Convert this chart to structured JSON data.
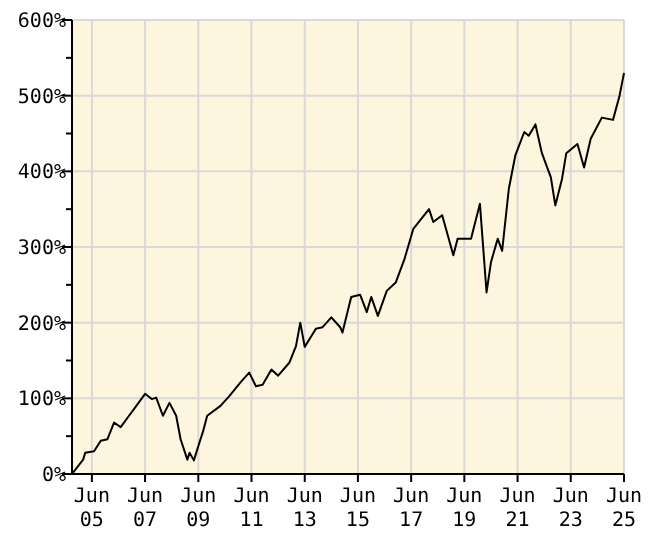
{
  "chart_data": {
    "type": "line",
    "line_style": "solid",
    "marker": "none",
    "grid": true,
    "xlim": [
      "2004-09",
      "2025-06"
    ],
    "xticks": [
      {
        "value": "2005-06",
        "label": "Jun 05"
      },
      {
        "value": "2007-06",
        "label": "Jun 07"
      },
      {
        "value": "2009-06",
        "label": "Jun 09"
      },
      {
        "value": "2011-06",
        "label": "Jun 11"
      },
      {
        "value": "2013-06",
        "label": "Jun 13"
      },
      {
        "value": "2015-06",
        "label": "Jun 15"
      },
      {
        "value": "2017-06",
        "label": "Jun 17"
      },
      {
        "value": "2019-06",
        "label": "Jun 19"
      },
      {
        "value": "2021-06",
        "label": "Jun 21"
      },
      {
        "value": "2023-06",
        "label": "Jun 23"
      },
      {
        "value": "2025-06",
        "label": "Jun 25"
      }
    ],
    "ylim": [
      0,
      600
    ],
    "yticks": [
      {
        "value": 0,
        "label": "0%"
      },
      {
        "value": 50,
        "label": null
      },
      {
        "value": 100,
        "label": "100%"
      },
      {
        "value": 150,
        "label": null
      },
      {
        "value": 200,
        "label": "200%"
      },
      {
        "value": 250,
        "label": null
      },
      {
        "value": 300,
        "label": "300%"
      },
      {
        "value": 350,
        "label": null
      },
      {
        "value": 400,
        "label": "400%"
      },
      {
        "value": 450,
        "label": null
      },
      {
        "value": 500,
        "label": "500%"
      },
      {
        "value": 550,
        "label": null
      },
      {
        "value": 600,
        "label": "600%"
      }
    ],
    "x": [
      "2004-09",
      "2005-02",
      "2005-03",
      "2005-07",
      "2005-10",
      "2006-01",
      "2006-04",
      "2006-07",
      "2006-10",
      "2007-02",
      "2007-06",
      "2007-09",
      "2007-11",
      "2008-02",
      "2008-05",
      "2008-08",
      "2008-10",
      "2009-01",
      "2009-02",
      "2009-04",
      "2009-07",
      "2009-08",
      "2009-10",
      "2010-04",
      "2010-08",
      "2011-01",
      "2011-05",
      "2011-08",
      "2011-11",
      "2012-03",
      "2012-06",
      "2012-11",
      "2013-02",
      "2013-04",
      "2013-06",
      "2013-11",
      "2014-02",
      "2014-06",
      "2014-10",
      "2014-11",
      "2015-03",
      "2015-07",
      "2015-10",
      "2015-12",
      "2016-03",
      "2016-07",
      "2016-11",
      "2017-03",
      "2017-07",
      "2018-02",
      "2018-04",
      "2018-08",
      "2019-01",
      "2019-03",
      "2019-09",
      "2020-01",
      "2020-04",
      "2020-06",
      "2020-09",
      "2020-11",
      "2021-02",
      "2021-05",
      "2021-09",
      "2021-11",
      "2022-02",
      "2022-05",
      "2022-09",
      "2022-11",
      "2023-02",
      "2023-04",
      "2023-09",
      "2023-12",
      "2024-03",
      "2024-08",
      "2025-01",
      "2025-04",
      "2025-06"
    ],
    "series": [
      {
        "color": "#000000",
        "values": [
          0,
          19,
          28,
          30,
          44,
          46,
          68,
          62,
          74,
          90,
          106,
          99,
          101,
          77,
          94,
          77,
          46,
          19,
          28,
          18,
          46,
          55,
          77,
          90,
          103,
          121,
          134,
          116,
          118,
          138,
          130,
          147,
          169,
          200,
          168,
          192,
          194,
          207,
          194,
          187,
          234,
          237,
          214,
          234,
          209,
          242,
          253,
          284,
          324,
          350,
          333,
          342,
          289,
          311,
          311,
          357,
          240,
          280,
          311,
          295,
          377,
          421,
          452,
          447,
          462,
          424,
          392,
          355,
          390,
          424,
          436,
          405,
          443,
          471,
          468,
          500,
          530
        ]
      }
    ]
  }
}
